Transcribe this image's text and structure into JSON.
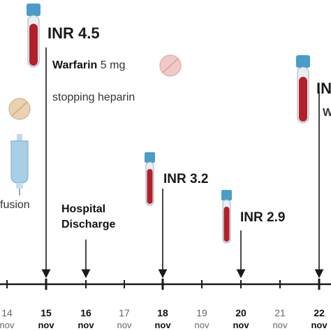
{
  "events": {
    "inr_15": "INR 4.5",
    "warfarin_drug": "Warfarin",
    "warfarin_dose": "5 mg",
    "stopping_heparin": "stopping heparin",
    "infusion_partial": "fusion",
    "hospital_discharge_line1": "Hospital",
    "hospital_discharge_line2": "Discharge",
    "inr_18": "INR 3.2",
    "inr_20": "INR 2.9",
    "inr_22_partial": "IN",
    "edge_partial": "W"
  },
  "timeline": {
    "days": [
      {
        "day": "14",
        "month": "nov",
        "emphasis": false
      },
      {
        "day": "15",
        "month": "nov",
        "emphasis": true
      },
      {
        "day": "16",
        "month": "nov",
        "emphasis": true
      },
      {
        "day": "17",
        "month": "nov",
        "emphasis": false
      },
      {
        "day": "18",
        "month": "nov",
        "emphasis": true
      },
      {
        "day": "19",
        "month": "nov",
        "emphasis": false
      },
      {
        "day": "20",
        "month": "nov",
        "emphasis": true
      },
      {
        "day": "21",
        "month": "nov",
        "emphasis": false
      },
      {
        "day": "22",
        "month": "nov",
        "emphasis": true
      },
      {
        "day": "",
        "month": "",
        "emphasis": false
      }
    ]
  },
  "colors": {
    "blood": "#b3202a",
    "cap": "#4a9cc9",
    "pill_pink": "#f2c9c9",
    "pill_tan": "#ead2b0",
    "iv_bag": "#a9cfe6",
    "axis": "#1a1a1a"
  }
}
